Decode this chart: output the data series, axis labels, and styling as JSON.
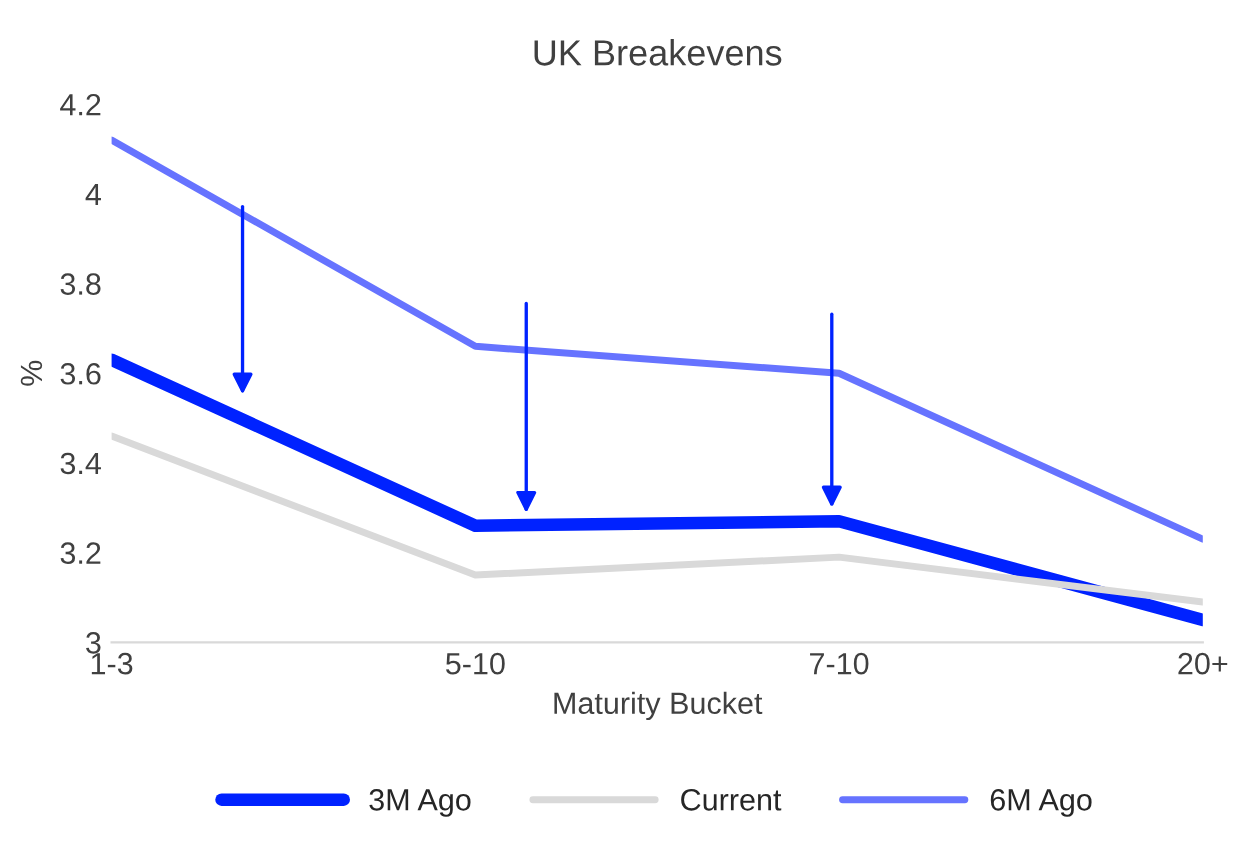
{
  "chart_data": {
    "type": "line",
    "title": "UK Breakevens",
    "xlabel": "Maturity Bucket",
    "ylabel": "%",
    "categories": [
      "1-3",
      "5-10",
      "7-10",
      "20+"
    ],
    "series": [
      {
        "name": "3M Ago",
        "color": "#0022ff",
        "values": [
          3.63,
          3.26,
          3.27,
          3.05
        ]
      },
      {
        "name": "Current",
        "color": "#d9d9d9",
        "values": [
          3.46,
          3.15,
          3.19,
          3.09
        ]
      },
      {
        "name": "6M Ago",
        "color": "#6673ff",
        "values": [
          4.12,
          3.66,
          3.6,
          3.23
        ]
      }
    ],
    "ylim": [
      3,
      4.2
    ],
    "yticks": [
      3,
      3.2,
      3.4,
      3.6,
      3.8,
      4,
      4.2
    ],
    "grid": false,
    "legend": "bottom",
    "marker": "none",
    "line_style": "solid"
  }
}
